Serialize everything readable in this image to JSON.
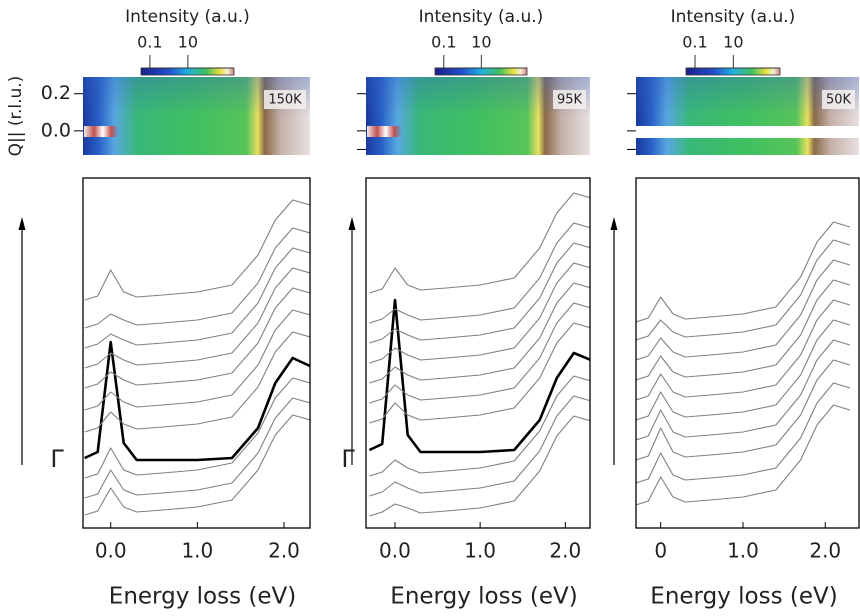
{
  "chart_data": [
    {
      "type": "line",
      "colorbar": {
        "title": "Intensity (a.u.)",
        "scale": "log",
        "clim": [
          0.034,
          2700
        ],
        "ticks": [
          0.1,
          10
        ]
      },
      "heatmap": {
        "label": "150K",
        "ylabel": "Q|| (r.l.u.)",
        "ylim": [
          -0.13,
          0.29
        ],
        "yticks": [
          0.2,
          {
            "value": 0,
            "label": "0.0"
          }
        ],
        "show_ytick_labels": true
      },
      "x": [
        -0.3,
        -0.15,
        0,
        0.15,
        0.3,
        0.6,
        1.0,
        1.4,
        1.7,
        1.9,
        2.1,
        2.3
      ],
      "xlim": [
        -0.32,
        2.3
      ],
      "xticks": [
        {
          "value": 0,
          "label": "0.0"
        },
        {
          "value": 1,
          "label": "1.0"
        },
        {
          "value": 2,
          "label": "2.0"
        }
      ],
      "xlabel": "Energy loss (eV)",
      "ylim": [
        0,
        350
      ],
      "marker_label": "Γ",
      "series": [
        {
          "color": "#808080",
          "values": [
            13,
            17,
            40,
            21,
            16,
            18,
            21,
            28,
            58,
            93,
            113,
            108
          ]
        },
        {
          "color": "#808080",
          "values": [
            30,
            34,
            58,
            38,
            33,
            35,
            38,
            45,
            75,
            110,
            130,
            125
          ]
        },
        {
          "color": "#808080",
          "values": [
            50,
            54,
            80,
            58,
            53,
            55,
            58,
            65,
            95,
            130,
            150,
            145
          ]
        },
        {
          "color": "#000000",
          "line_width": 2.6,
          "values": [
            70,
            76,
            186,
            85,
            68,
            68,
            68,
            70,
            100,
            145,
            170,
            162
          ]
        },
        {
          "color": "#808080",
          "values": [
            96,
            100,
            116,
            104,
            99,
            101,
            104,
            111,
            141,
            176,
            196,
            191
          ]
        },
        {
          "color": "#808080",
          "values": [
            118,
            122,
            136,
            126,
            121,
            123,
            126,
            133,
            163,
            198,
            218,
            213
          ]
        },
        {
          "color": "#808080",
          "values": [
            140,
            144,
            156,
            148,
            143,
            145,
            148,
            155,
            185,
            220,
            240,
            235
          ]
        },
        {
          "color": "#808080",
          "values": [
            160,
            164,
            175,
            168,
            163,
            165,
            168,
            175,
            205,
            240,
            260,
            255
          ]
        },
        {
          "color": "#808080",
          "values": [
            180,
            184,
            194,
            188,
            183,
            185,
            188,
            195,
            225,
            260,
            280,
            275
          ]
        },
        {
          "color": "#808080",
          "values": [
            200,
            204,
            214,
            208,
            203,
            205,
            208,
            215,
            245,
            280,
            300,
            295
          ]
        },
        {
          "color": "#808080",
          "values": [
            228,
            232,
            258,
            236,
            231,
            233,
            236,
            243,
            273,
            308,
            328,
            323
          ]
        }
      ]
    },
    {
      "type": "line",
      "colorbar": {
        "title": "Intensity (a.u.)",
        "scale": "log",
        "clim": [
          0.034,
          2700
        ],
        "ticks": [
          0.1,
          10
        ]
      },
      "heatmap": {
        "label": "95K",
        "ylim": [
          -0.13,
          0.29
        ],
        "yticks": [
          0.2,
          0,
          -0.1
        ],
        "show_ytick_labels": false
      },
      "x": [
        -0.3,
        -0.15,
        0,
        0.15,
        0.3,
        0.6,
        1.0,
        1.4,
        1.7,
        1.9,
        2.1,
        2.3
      ],
      "xlim": [
        -0.34,
        2.29
      ],
      "xticks": [
        {
          "value": 0,
          "label": "0.0"
        },
        {
          "value": 1,
          "label": "1.0"
        },
        {
          "value": 2,
          "label": "2.0"
        }
      ],
      "xlabel": "Energy loss (eV)",
      "ylim": [
        0,
        350
      ],
      "marker_label": "Γ",
      "series": [
        {
          "color": "#808080",
          "values": [
            12,
            16,
            24,
            20,
            15,
            17,
            20,
            27,
            57,
            92,
            112,
            107
          ]
        },
        {
          "color": "#808080",
          "values": [
            32,
            36,
            46,
            40,
            35,
            37,
            40,
            47,
            77,
            112,
            132,
            127
          ]
        },
        {
          "color": "#808080",
          "values": [
            52,
            56,
            68,
            60,
            55,
            57,
            60,
            67,
            97,
            132,
            152,
            147
          ]
        },
        {
          "color": "#000000",
          "line_width": 2.6,
          "values": [
            78,
            84,
            228,
            93,
            76,
            76,
            76,
            78,
            108,
            150,
            175,
            168
          ]
        },
        {
          "color": "#808080",
          "values": [
            105,
            109,
            125,
            113,
            108,
            110,
            113,
            120,
            150,
            185,
            205,
            200
          ]
        },
        {
          "color": "#808080",
          "values": [
            125,
            129,
            143,
            133,
            128,
            130,
            133,
            140,
            170,
            205,
            225,
            220
          ]
        },
        {
          "color": "#808080",
          "values": [
            145,
            149,
            161,
            153,
            148,
            150,
            153,
            160,
            190,
            225,
            245,
            240
          ]
        },
        {
          "color": "#808080",
          "values": [
            165,
            169,
            180,
            173,
            168,
            170,
            173,
            180,
            210,
            245,
            265,
            260
          ]
        },
        {
          "color": "#808080",
          "values": [
            185,
            189,
            199,
            193,
            188,
            190,
            193,
            200,
            230,
            265,
            285,
            280
          ]
        },
        {
          "color": "#808080",
          "values": [
            205,
            209,
            219,
            213,
            208,
            210,
            213,
            220,
            250,
            285,
            305,
            300
          ]
        },
        {
          "color": "#808080",
          "values": [
            235,
            239,
            260,
            243,
            238,
            240,
            243,
            250,
            280,
            315,
            335,
            330
          ]
        }
      ]
    },
    {
      "type": "line",
      "colorbar": {
        "title": "Intensity (a.u.)",
        "scale": "log",
        "clim": [
          0.034,
          2700
        ],
        "ticks": [
          0.1,
          10
        ]
      },
      "heatmap": {
        "label": "50K",
        "ylim": [
          -0.13,
          0.29
        ],
        "yticks": [
          0.2,
          0,
          -0.1
        ],
        "show_ytick_labels": false
      },
      "x": [
        -0.3,
        -0.15,
        0,
        0.15,
        0.3,
        0.6,
        1.0,
        1.4,
        1.7,
        1.9,
        2.1,
        2.3
      ],
      "xlim": [
        -0.3,
        2.41
      ],
      "xticks": [
        0,
        {
          "value": 1,
          "label": "1.0"
        },
        {
          "value": 2,
          "label": "2.0"
        }
      ],
      "xlabel": "Energy loss (eV)",
      "ylim": [
        0,
        350
      ],
      "series": [
        {
          "color": "#808080",
          "values": [
            23,
            27,
            51,
            31,
            26,
            28,
            31,
            38,
            68,
            103,
            123,
            118
          ]
        },
        {
          "color": "#808080",
          "values": [
            45,
            49,
            75,
            53,
            48,
            50,
            53,
            60,
            90,
            125,
            145,
            140
          ]
        },
        {
          "color": "#808080",
          "values": [
            68,
            72,
            100,
            76,
            71,
            73,
            76,
            83,
            113,
            148,
            168,
            163
          ]
        },
        {
          "color": "#808080",
          "values": [
            88,
            92,
            118,
            96,
            91,
            93,
            96,
            103,
            133,
            168,
            188,
            183
          ]
        },
        {
          "color": "#808080",
          "values": [
            108,
            112,
            136,
            116,
            111,
            113,
            116,
            123,
            153,
            188,
            208,
            203
          ]
        },
        {
          "color": "#808080",
          "values": [
            128,
            132,
            154,
            136,
            131,
            133,
            136,
            143,
            173,
            208,
            228,
            223
          ]
        },
        {
          "color": "#808080",
          "values": [
            148,
            152,
            172,
            156,
            151,
            153,
            156,
            163,
            193,
            228,
            248,
            243
          ]
        },
        {
          "color": "#808080",
          "values": [
            168,
            172,
            190,
            176,
            171,
            173,
            176,
            183,
            213,
            248,
            268,
            263
          ]
        },
        {
          "color": "#808080",
          "values": [
            188,
            192,
            208,
            196,
            191,
            193,
            196,
            203,
            233,
            268,
            288,
            283
          ]
        },
        {
          "color": "#808080",
          "values": [
            206,
            210,
            231,
            214,
            209,
            211,
            214,
            221,
            251,
            286,
            306,
            301
          ]
        }
      ]
    }
  ]
}
